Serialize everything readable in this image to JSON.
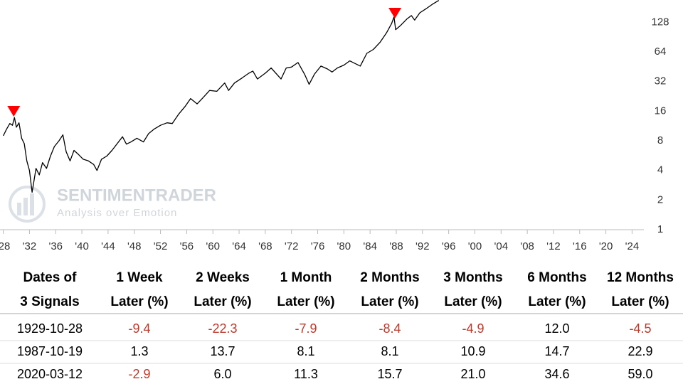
{
  "chart_data": {
    "type": "line",
    "log_scale": true,
    "watermark": {
      "brand": "SENTIMENTRADER",
      "tagline": "Analysis over Emotion"
    },
    "xlim": [
      1927.5,
      2025.8
    ],
    "ylim": [
      1,
      216
    ],
    "xticks": [
      {
        "value": 1928,
        "label": "'28"
      },
      {
        "value": 1932,
        "label": "'32"
      },
      {
        "value": 1936,
        "label": "'36"
      },
      {
        "value": 1940,
        "label": "'40"
      },
      {
        "value": 1944,
        "label": "'44"
      },
      {
        "value": 1948,
        "label": "'48"
      },
      {
        "value": 1952,
        "label": "'52"
      },
      {
        "value": 1956,
        "label": "'56"
      },
      {
        "value": 1960,
        "label": "'60"
      },
      {
        "value": 1964,
        "label": "'64"
      },
      {
        "value": 1968,
        "label": "'68"
      },
      {
        "value": 1972,
        "label": "'72"
      },
      {
        "value": 1976,
        "label": "'76"
      },
      {
        "value": 1980,
        "label": "'80"
      },
      {
        "value": 1984,
        "label": "'84"
      },
      {
        "value": 1988,
        "label": "'88"
      },
      {
        "value": 1992,
        "label": "'92"
      },
      {
        "value": 1996,
        "label": "'96"
      },
      {
        "value": 2000,
        "label": "'00"
      },
      {
        "value": 2004,
        "label": "'04"
      },
      {
        "value": 2008,
        "label": "'08"
      },
      {
        "value": 2012,
        "label": "'12"
      },
      {
        "value": 2016,
        "label": "'16"
      },
      {
        "value": 2020,
        "label": "'20"
      },
      {
        "value": 2024,
        "label": "'24"
      }
    ],
    "yticks": [
      1,
      2,
      4,
      8,
      16,
      32,
      64,
      128
    ],
    "series": [
      {
        "color": "#000000",
        "x": [
          1928.0,
          1928.5,
          1929.0,
          1929.4,
          1929.7,
          1930.0,
          1930.4,
          1930.8,
          1931.2,
          1931.6,
          1932.0,
          1932.4,
          1932.6,
          1933.0,
          1933.5,
          1934.0,
          1934.6,
          1935.2,
          1935.8,
          1936.5,
          1937.1,
          1937.6,
          1938.2,
          1938.8,
          1939.5,
          1940.2,
          1941.0,
          1941.8,
          1942.3,
          1943.0,
          1943.8,
          1944.6,
          1945.4,
          1946.2,
          1946.8,
          1947.5,
          1948.4,
          1949.4,
          1950.2,
          1951.0,
          1952.0,
          1953.0,
          1953.8,
          1954.8,
          1955.8,
          1956.6,
          1957.6,
          1958.5,
          1959.5,
          1960.6,
          1961.8,
          1962.4,
          1963.3,
          1964.5,
          1965.5,
          1966.1,
          1966.8,
          1968.0,
          1968.9,
          1970.4,
          1971.2,
          1972.0,
          1973.0,
          1974.0,
          1974.7,
          1975.5,
          1976.5,
          1977.5,
          1978.2,
          1979.0,
          1980.0,
          1980.9,
          1982.5,
          1983.5,
          1984.5,
          1985.5,
          1986.5,
          1987.3,
          1987.65,
          1987.9,
          1988.6,
          1989.6,
          1990.3,
          1990.8,
          1991.6,
          1992.5,
          1993.5,
          1994.5
        ],
        "values": [
          9.0,
          10.5,
          12.0,
          11.5,
          13.8,
          11.0,
          12.2,
          8.5,
          7.5,
          5.0,
          4.0,
          2.4,
          2.9,
          4.2,
          3.6,
          4.8,
          4.2,
          5.6,
          7.0,
          8.0,
          9.2,
          6.2,
          5.0,
          6.4,
          5.8,
          5.2,
          5.0,
          4.6,
          4.0,
          5.2,
          5.6,
          6.4,
          7.5,
          8.8,
          7.4,
          7.8,
          8.5,
          7.8,
          9.5,
          10.5,
          11.5,
          12.2,
          12.0,
          15.0,
          18.0,
          21.5,
          19.0,
          22.0,
          26.0,
          25.5,
          31.0,
          26.0,
          31.0,
          35.0,
          39.0,
          41.0,
          34.0,
          39.0,
          44.0,
          34.0,
          44.0,
          45.0,
          50.0,
          38.0,
          30.0,
          38.0,
          46.0,
          43.0,
          40.0,
          44.0,
          47.0,
          52.0,
          46.0,
          62.0,
          68.0,
          80.0,
          100.0,
          125.0,
          145.0,
          108.0,
          118.0,
          138.0,
          150.0,
          135.0,
          160.0,
          175.0,
          195.0,
          214.0
        ]
      },
      {
        "name": "markers",
        "color": "#ff0000",
        "x": [
          1929.6,
          1987.8
        ],
        "values": [
          14.1,
          140
        ]
      }
    ]
  },
  "table": {
    "header": [
      [
        "Dates of",
        "3 Signals"
      ],
      [
        "1 Week",
        "Later (%)"
      ],
      [
        "2 Weeks",
        "Later (%)"
      ],
      [
        "1 Month",
        "Later (%)"
      ],
      [
        "2 Months",
        "Later (%)"
      ],
      [
        "3 Months",
        "Later (%)"
      ],
      [
        "6 Months",
        "Later (%)"
      ],
      [
        "12 Months",
        "Later (%)"
      ]
    ],
    "rows": [
      [
        "1929-10-28",
        "-9.4",
        "-22.3",
        "-7.9",
        "-8.4",
        "-4.9",
        "12.0",
        "-4.5"
      ],
      [
        "1987-10-19",
        "1.3",
        "13.7",
        "8.1",
        "8.1",
        "10.9",
        "14.7",
        "22.9"
      ],
      [
        "2020-03-12",
        "-2.9",
        "6.0",
        "11.3",
        "15.7",
        "21.0",
        "34.6",
        "59.0"
      ]
    ]
  }
}
